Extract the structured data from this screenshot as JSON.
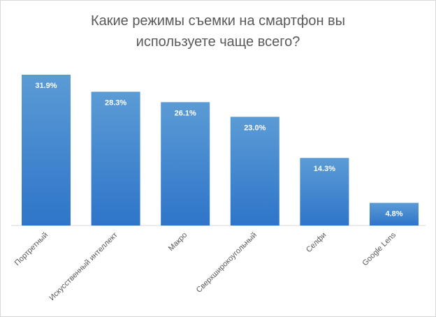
{
  "chart_data": {
    "type": "bar",
    "title_lines": [
      "Какие режимы съемки на смартфон вы",
      "используете чаще всего?"
    ],
    "categories": [
      "Портретный",
      "Искусственный интеллект",
      "Макро",
      "Сверхширокоугольный",
      "Селфи",
      "Google Lens"
    ],
    "values": [
      31.9,
      28.3,
      26.1,
      23.0,
      14.3,
      4.8
    ],
    "data_labels": [
      "31.9%",
      "28.3%",
      "26.1%",
      "23.0%",
      "14.3%",
      "4.8%"
    ],
    "xlabel": "",
    "ylabel": "",
    "ylim": [
      0,
      32
    ],
    "grid": false,
    "legend": "none",
    "colors": {
      "bar_top": "#5b9bd5",
      "bar_bottom": "#2e75c9",
      "label": "#595959",
      "data_label": "#ffffff"
    }
  }
}
